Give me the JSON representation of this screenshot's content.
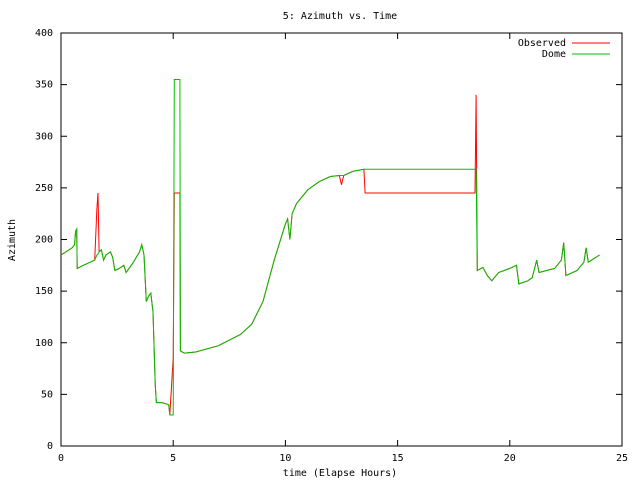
{
  "chart_data": {
    "type": "line",
    "title": "5: Azimuth vs. Time",
    "x_label": "time (Elapse Hours)",
    "y_label": "Azimuth",
    "x": [
      0,
      0.5,
      0.6,
      0.65,
      0.7,
      0.72,
      1.0,
      1.5,
      1.6,
      1.65,
      1.7,
      1.8,
      1.9,
      2.0,
      2.2,
      2.3,
      2.4,
      2.6,
      2.8,
      2.9,
      3.2,
      3.5,
      3.6,
      3.7,
      3.8,
      3.9,
      4.0,
      4.1,
      4.2,
      4.25,
      4.5,
      4.8,
      4.85,
      5.0,
      5.05,
      5.3,
      5.32,
      5.5,
      6,
      7,
      8,
      8.5,
      9,
      9.5,
      10,
      10.1,
      10.2,
      10.3,
      10.5,
      11,
      11.5,
      12,
      12.4,
      12.5,
      12.6,
      13,
      13.5,
      13.55,
      18.45,
      18.5,
      18.55,
      18.8,
      19,
      19.2,
      19.5,
      20,
      20.3,
      20.4,
      20.8,
      21,
      21.2,
      21.3,
      22,
      22.3,
      22.4,
      22.5,
      23,
      23.3,
      23.4,
      23.5,
      24
    ],
    "series": [
      {
        "name": "Observed",
        "color": "#ff0000",
        "values": [
          185,
          192,
          195,
          208,
          210,
          172,
          175,
          180,
          230,
          245,
          188,
          190,
          180,
          185,
          188,
          183,
          170,
          172,
          175,
          168,
          177,
          188,
          195,
          185,
          140,
          145,
          148,
          130,
          60,
          42,
          42,
          40,
          30,
          85,
          245,
          245,
          92,
          90,
          91,
          97,
          108,
          118,
          140,
          180,
          215,
          220,
          200,
          225,
          235,
          248,
          256,
          261,
          262,
          253,
          262,
          266,
          268,
          245,
          245,
          340,
          170,
          173,
          165,
          160,
          168,
          172,
          175,
          157,
          160,
          163,
          180,
          168,
          172,
          180,
          197,
          165,
          170,
          178,
          192,
          178,
          185
        ]
      },
      {
        "name": "Dome",
        "color": "#00c000",
        "values": [
          185,
          192,
          195,
          208,
          210,
          172,
          175,
          180,
          185,
          186,
          188,
          190,
          180,
          185,
          188,
          183,
          170,
          172,
          175,
          168,
          177,
          188,
          195,
          185,
          140,
          145,
          148,
          130,
          60,
          42,
          42,
          40,
          30,
          30,
          355,
          355,
          92,
          90,
          91,
          97,
          108,
          118,
          140,
          180,
          215,
          220,
          200,
          225,
          235,
          248,
          256,
          261,
          262,
          262,
          262,
          266,
          268,
          268,
          268,
          268,
          170,
          173,
          165,
          160,
          168,
          172,
          175,
          157,
          160,
          163,
          180,
          168,
          172,
          180,
          197,
          165,
          170,
          178,
          192,
          178,
          185
        ]
      }
    ],
    "xlim": [
      0,
      25
    ],
    "xticks": [
      0,
      5,
      10,
      15,
      20,
      25
    ],
    "ylim": [
      0,
      400
    ],
    "yticks": [
      0,
      50,
      100,
      150,
      200,
      250,
      300,
      350,
      400
    ],
    "legend": "top-right"
  }
}
